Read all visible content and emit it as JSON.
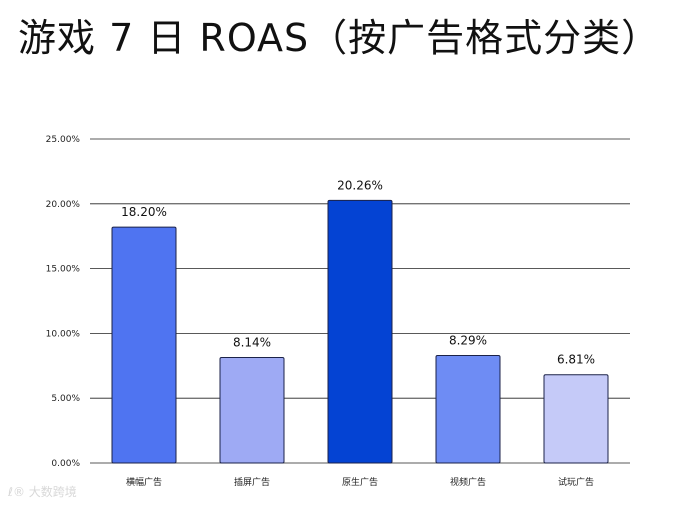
{
  "chart_data": {
    "type": "bar",
    "title": "游戏 7 日 ROAS（按广告格式分类）",
    "categories": [
      "横幅广告",
      "插屏广告",
      "原生广告",
      "视频广告",
      "试玩广告"
    ],
    "values": [
      18.2,
      8.14,
      20.26,
      8.29,
      6.81
    ],
    "value_labels": [
      "18.20%",
      "8.14%",
      "20.26%",
      "8.29%",
      "6.81%"
    ],
    "bar_colors": [
      "#4f74f1",
      "#9eaaf4",
      "#0443d3",
      "#6e8cf4",
      "#c5caf8"
    ],
    "ylim": [
      0,
      25
    ],
    "yticks": [
      0,
      5,
      10,
      15,
      20,
      25
    ],
    "ytick_labels": [
      "0.00%",
      "5.00%",
      "10.00%",
      "15.00%",
      "20.00%",
      "25.00%"
    ],
    "xlabel": "",
    "ylabel": "",
    "grid": true,
    "legend": "none"
  },
  "watermark": {
    "text": "ℓ® 大数跨境"
  },
  "colors": {
    "gridline": "#222222",
    "bar_stroke": "#1b2248"
  }
}
